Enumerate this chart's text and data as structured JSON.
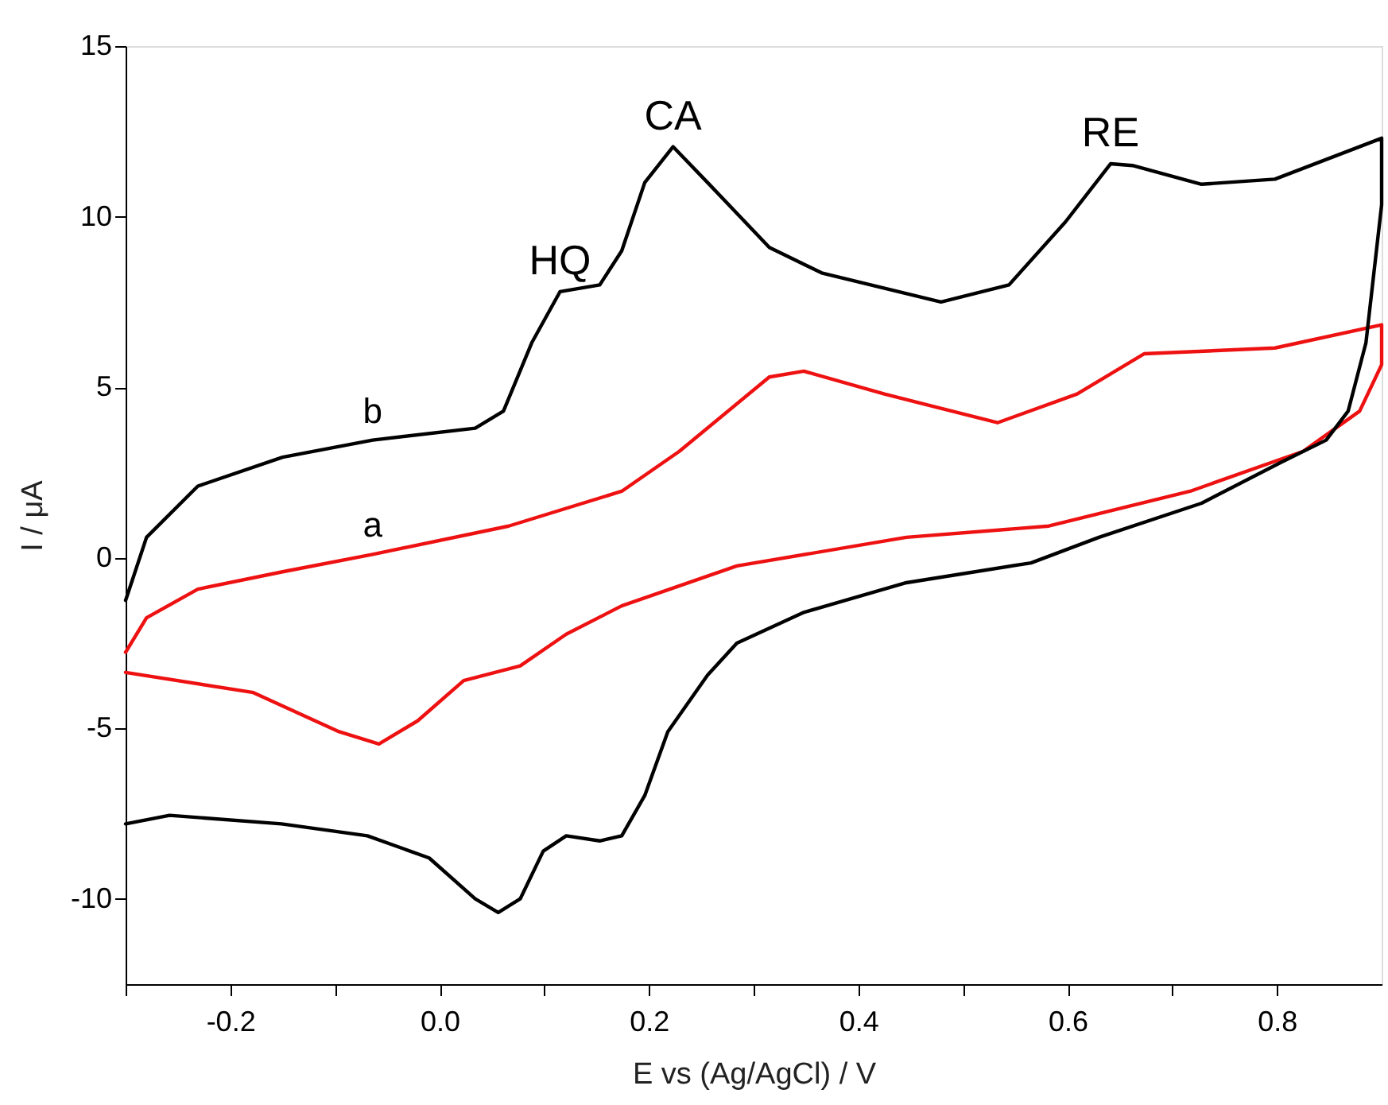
{
  "chart_data": {
    "type": "line",
    "xlabel": "E vs (Ag/AgCl) / V",
    "ylabel": "I / μA",
    "xlim": [
      -0.3,
      0.9
    ],
    "ylim": [
      -12.5,
      15
    ],
    "xticks": [
      {
        "value": -0.3,
        "label": null
      },
      {
        "value": -0.2,
        "label": "-0.2"
      },
      {
        "value": -0.1,
        "label": null
      },
      {
        "value": 0,
        "label": "0.0"
      },
      {
        "value": 0.1,
        "label": null
      },
      {
        "value": 0.2,
        "label": "0.2"
      },
      {
        "value": 0.3,
        "label": null
      },
      {
        "value": 0.4,
        "label": "0.4"
      },
      {
        "value": 0.5,
        "label": null
      },
      {
        "value": 0.6,
        "label": "0.6"
      },
      {
        "value": 0.7,
        "label": null
      },
      {
        "value": 0.8,
        "label": "0.8"
      }
    ],
    "yticks": [
      -10,
      -5,
      0,
      5,
      10,
      15
    ],
    "grid": false,
    "legend": false,
    "marker": "none",
    "line_style": "solid",
    "series": [
      {
        "color": "#ee1111",
        "x": [
          -0.3,
          -0.28,
          -0.231,
          -0.15,
          -0.064,
          0.066,
          0.174,
          0.229,
          0.315,
          0.348,
          0.425,
          0.533,
          0.609,
          0.673,
          0.798,
          0.9,
          0.9,
          0.879,
          0.825,
          0.717,
          0.582,
          0.446,
          0.284,
          0.174,
          0.121,
          0.077,
          0.023,
          -0.021,
          -0.058,
          -0.096,
          -0.178,
          -0.3
        ],
        "values": [
          -2.77,
          -1.76,
          -0.92,
          -0.41,
          0.1,
          0.93,
          1.95,
          3.12,
          5.3,
          5.47,
          4.8,
          3.96,
          4.8,
          5.98,
          6.15,
          6.83,
          5.66,
          4.3,
          3.12,
          1.95,
          0.93,
          0.6,
          -0.24,
          -1.41,
          -2.24,
          -3.17,
          -3.6,
          -4.78,
          -5.46,
          -5.1,
          -3.95,
          -3.36
        ]
      },
      {
        "color": "#000000",
        "x": [
          -0.3,
          -0.28,
          -0.231,
          -0.15,
          -0.064,
          0.034,
          0.061,
          0.088,
          0.115,
          0.153,
          0.174,
          0.196,
          0.223,
          0.256,
          0.315,
          0.365,
          0.479,
          0.544,
          0.598,
          0.641,
          0.662,
          0.728,
          0.798,
          0.9,
          0.9,
          0.885,
          0.868,
          0.847,
          0.804,
          0.728,
          0.63,
          0.565,
          0.446,
          0.348,
          0.284,
          0.256,
          0.218,
          0.196,
          0.174,
          0.153,
          0.121,
          0.099,
          0.077,
          0.056,
          0.034,
          -0.01,
          -0.069,
          -0.151,
          -0.258,
          -0.3
        ],
        "values": [
          -1.25,
          0.6,
          2.1,
          2.95,
          3.45,
          3.8,
          4.3,
          6.3,
          7.8,
          8.0,
          9.0,
          11.0,
          12.05,
          11.0,
          9.1,
          8.35,
          7.5,
          8.0,
          9.85,
          11.55,
          11.5,
          10.95,
          11.1,
          12.3,
          10.35,
          6.3,
          4.3,
          3.45,
          2.8,
          1.6,
          0.6,
          -0.15,
          -0.73,
          -1.6,
          -2.5,
          -3.44,
          -5.1,
          -6.97,
          -8.15,
          -8.3,
          -8.15,
          -8.6,
          -10.0,
          -10.4,
          -10.0,
          -8.8,
          -8.15,
          -7.8,
          -7.55,
          -7.8
        ]
      }
    ],
    "annotations": [
      {
        "text": "a",
        "x": -0.064,
        "y": 0.1
      },
      {
        "text": "b",
        "x": -0.064,
        "y": 3.45
      },
      {
        "text": "HQ",
        "x": 0.115,
        "y": 7.8
      },
      {
        "text": "CA",
        "x": 0.223,
        "y": 12.05
      },
      {
        "text": "RE",
        "x": 0.641,
        "y": 11.55
      }
    ]
  }
}
